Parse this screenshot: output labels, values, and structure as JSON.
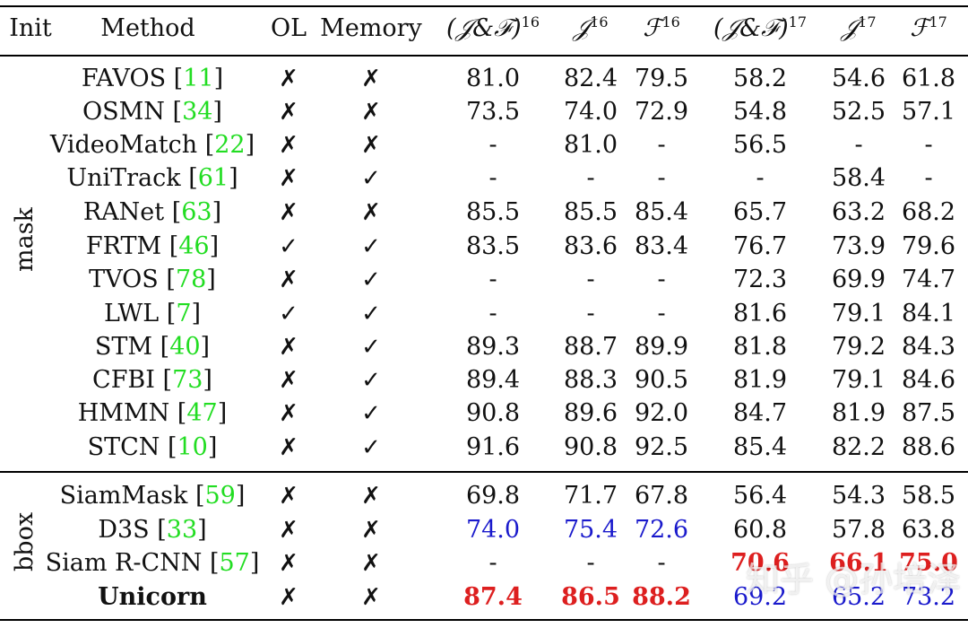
{
  "table": {
    "headers": {
      "init": "Init",
      "method": "Method",
      "ol": "OL",
      "memory": "Memory",
      "jf16": "(𝒥&ℱ)",
      "jf16_sup": "16",
      "j16": "𝒥",
      "j16_sup": "16",
      "f16": "ℱ",
      "f16_sup": "16",
      "jf17": "(𝒥&ℱ)",
      "jf17_sup": "17",
      "j17": "𝒥",
      "j17_sup": "17",
      "f17": "ℱ",
      "f17_sup": "17"
    },
    "groups": {
      "mask": "mask",
      "bbox": "bbox"
    },
    "rows": [
      {
        "name": "FAVOS",
        "ref": "11",
        "ol": "✗",
        "mem": "✗",
        "v": [
          "81.0",
          "82.4",
          "79.5",
          "58.2",
          "54.6",
          "61.8"
        ],
        "style": [
          "",
          "",
          "",
          "",
          "",
          ""
        ]
      },
      {
        "name": "OSMN",
        "ref": "34",
        "ol": "✗",
        "mem": "✗",
        "v": [
          "73.5",
          "74.0",
          "72.9",
          "54.8",
          "52.5",
          "57.1"
        ],
        "style": [
          "",
          "",
          "",
          "",
          "",
          ""
        ]
      },
      {
        "name": "VideoMatch",
        "ref": "22",
        "ol": "✗",
        "mem": "✗",
        "v": [
          "-",
          "81.0",
          "-",
          "56.5",
          "-",
          "-"
        ],
        "style": [
          "",
          "",
          "",
          "",
          "",
          ""
        ]
      },
      {
        "name": "UniTrack",
        "ref": "61",
        "ol": "✗",
        "mem": "✓",
        "v": [
          "-",
          "-",
          "-",
          "-",
          "58.4",
          "-"
        ],
        "style": [
          "",
          "",
          "",
          "",
          "",
          ""
        ]
      },
      {
        "name": "RANet",
        "ref": "63",
        "ol": "✗",
        "mem": "✗",
        "v": [
          "85.5",
          "85.5",
          "85.4",
          "65.7",
          "63.2",
          "68.2"
        ],
        "style": [
          "",
          "",
          "",
          "",
          "",
          ""
        ]
      },
      {
        "name": "FRTM",
        "ref": "46",
        "ol": "✓",
        "mem": "✓",
        "v": [
          "83.5",
          "83.6",
          "83.4",
          "76.7",
          "73.9",
          "79.6"
        ],
        "style": [
          "",
          "",
          "",
          "",
          "",
          ""
        ]
      },
      {
        "name": "TVOS",
        "ref": "78",
        "ol": "✗",
        "mem": "✓",
        "v": [
          "-",
          "-",
          "-",
          "72.3",
          "69.9",
          "74.7"
        ],
        "style": [
          "",
          "",
          "",
          "",
          "",
          ""
        ]
      },
      {
        "name": "LWL",
        "ref": "7",
        "ol": "✓",
        "mem": "✓",
        "v": [
          "-",
          "-",
          "-",
          "81.6",
          "79.1",
          "84.1"
        ],
        "style": [
          "",
          "",
          "",
          "",
          "",
          ""
        ]
      },
      {
        "name": "STM",
        "ref": "40",
        "ol": "✗",
        "mem": "✓",
        "v": [
          "89.3",
          "88.7",
          "89.9",
          "81.8",
          "79.2",
          "84.3"
        ],
        "style": [
          "",
          "",
          "",
          "",
          "",
          ""
        ]
      },
      {
        "name": "CFBI",
        "ref": "73",
        "ol": "✗",
        "mem": "✓",
        "v": [
          "89.4",
          "88.3",
          "90.5",
          "81.9",
          "79.1",
          "84.6"
        ],
        "style": [
          "",
          "",
          "",
          "",
          "",
          ""
        ]
      },
      {
        "name": "HMMN",
        "ref": "47",
        "ol": "✗",
        "mem": "✓",
        "v": [
          "90.8",
          "89.6",
          "92.0",
          "84.7",
          "81.9",
          "87.5"
        ],
        "style": [
          "",
          "",
          "",
          "",
          "",
          ""
        ]
      },
      {
        "name": "STCN",
        "ref": "10",
        "ol": "✗",
        "mem": "✓",
        "v": [
          "91.6",
          "90.8",
          "92.5",
          "85.4",
          "82.2",
          "88.6"
        ],
        "style": [
          "",
          "",
          "",
          "",
          "",
          ""
        ]
      },
      {
        "name": "SiamMask",
        "ref": "59",
        "ol": "✗",
        "mem": "✗",
        "v": [
          "69.8",
          "71.7",
          "67.8",
          "56.4",
          "54.3",
          "58.5"
        ],
        "style": [
          "",
          "",
          "",
          "",
          "",
          ""
        ]
      },
      {
        "name": "D3S",
        "ref": "33",
        "ol": "✗",
        "mem": "✗",
        "v": [
          "74.0",
          "75.4",
          "72.6",
          "60.8",
          "57.8",
          "63.8"
        ],
        "style": [
          "blue",
          "blue",
          "blue",
          "",
          "",
          ""
        ]
      },
      {
        "name": "Siam R-CNN",
        "ref": "57",
        "ol": "✗",
        "mem": "✗",
        "v": [
          "-",
          "-",
          "-",
          "70.6",
          "66.1",
          "75.0"
        ],
        "style": [
          "",
          "",
          "",
          "red",
          "red",
          "red"
        ]
      },
      {
        "name": "Unicorn",
        "ref": "",
        "bold": true,
        "ol": "✗",
        "mem": "✗",
        "v": [
          "87.4",
          "86.5",
          "88.2",
          "69.2",
          "65.2",
          "73.2"
        ],
        "style": [
          "red",
          "red",
          "red",
          "blue",
          "blue",
          "blue"
        ]
      }
    ]
  },
  "colors": {
    "ref": "#22dd22",
    "blue": "#1a1acc",
    "red": "#dd1f1f"
  },
  "watermark": "知乎 @孙培泽"
}
